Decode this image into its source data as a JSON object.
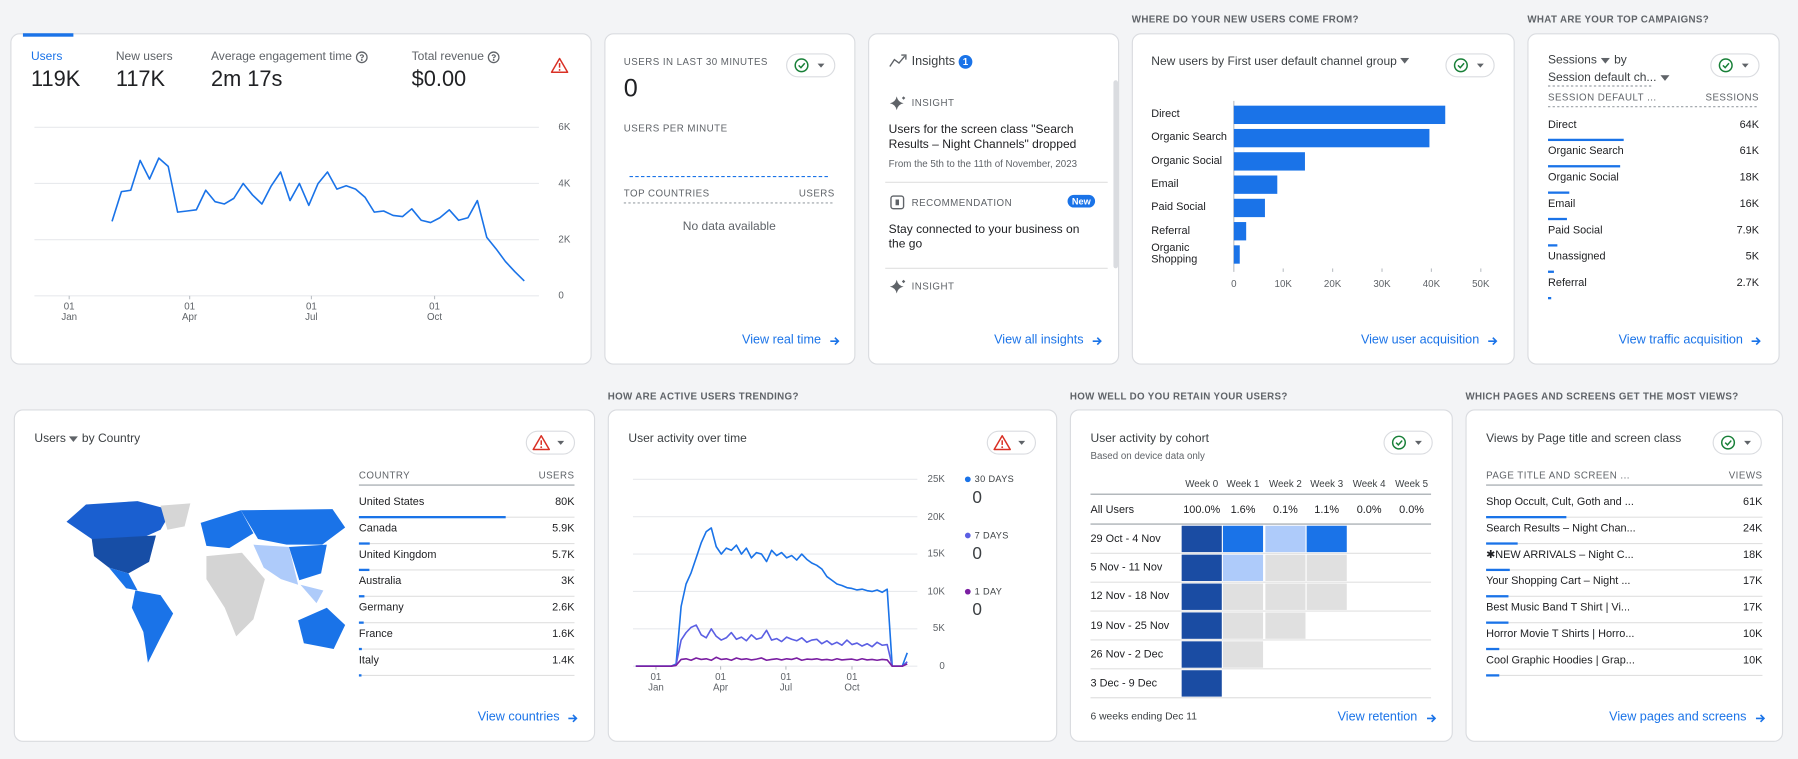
{
  "overview": {
    "metrics": [
      {
        "label": "Users",
        "value": "119K"
      },
      {
        "label": "New users",
        "value": "117K"
      },
      {
        "label": "Average engagement time",
        "value": "2m 17s"
      },
      {
        "label": "Total revenue",
        "value": "$0.00"
      }
    ],
    "chart_data": {
      "type": "line",
      "x": [
        32,
        39,
        46,
        53,
        60,
        67,
        74,
        81,
        88,
        95,
        102,
        109,
        116,
        123,
        130,
        137,
        144,
        151,
        158,
        165,
        172,
        179,
        186,
        193,
        200,
        207,
        214,
        221,
        228,
        235,
        242,
        249,
        256,
        263,
        270,
        277,
        284,
        291,
        298,
        305,
        312,
        319,
        326,
        333,
        340
      ],
      "values": [
        2650,
        3710,
        3760,
        4820,
        4160,
        4900,
        4610,
        2980,
        3020,
        3060,
        3760,
        3350,
        3270,
        3470,
        4000,
        3590,
        3270,
        3920,
        4410,
        3390,
        4000,
        3220,
        4000,
        4410,
        3800,
        3920,
        3800,
        3510,
        2980,
        3020,
        2860,
        2820,
        3100,
        2690,
        2610,
        2780,
        3060,
        2690,
        2780,
        3390,
        2080,
        1670,
        1220,
        860,
        530
      ],
      "color": "#1a73e8",
      "xlim": [
        -26,
        351
      ],
      "xticks": [
        {
          "value": 0,
          "label": "01 Jan"
        },
        {
          "value": 90,
          "label": "01 Apr"
        },
        {
          "value": 181,
          "label": "01 Jul"
        },
        {
          "value": 273,
          "label": "01 Oct"
        }
      ],
      "ylim": [
        0,
        6000
      ],
      "yticks": [
        {
          "value": 6000,
          "label": "6K"
        },
        {
          "value": 4000,
          "label": "4K"
        },
        {
          "value": 2000,
          "label": "2K"
        },
        0
      ],
      "grid": true
    }
  },
  "realtime": {
    "title": "USERS IN LAST 30 MINUTES",
    "value": 0,
    "subtitle": "USERS PER MINUTE",
    "columns": [
      "TOP COUNTRIES",
      "USERS"
    ],
    "empty": "No data available",
    "link": "View real time"
  },
  "insights": {
    "title": "Insights",
    "count": 1,
    "items": [
      {
        "kind": "INSIGHT",
        "text": "Users for the screen class \"Search Results – Night Channels\" dropped",
        "date": "From the 5th to the 11th of November, 2023"
      },
      {
        "kind": "RECOMMENDATION",
        "badge": "New",
        "text": "Stay connected to your business on the go"
      },
      {
        "kind": "INSIGHT"
      }
    ],
    "link": "View all insights"
  },
  "acquisition": {
    "section": "WHERE DO YOUR NEW USERS COME FROM?",
    "chart_data": {
      "type": "hbar",
      "title": "New users by First user default channel group",
      "categories": [
        "Direct",
        "Organic Search",
        "Organic Social",
        "Email",
        "Paid Social",
        "Referral",
        "Organic Shopping"
      ],
      "values": [
        42800,
        39600,
        14400,
        8800,
        6300,
        2500,
        1200
      ],
      "color": "#1a73e8",
      "xlim": [
        0,
        52000
      ],
      "xticks": [
        0,
        {
          "value": 10000,
          "label": "10K"
        },
        {
          "value": 20000,
          "label": "20K"
        },
        {
          "value": 30000,
          "label": "30K"
        },
        {
          "value": 40000,
          "label": "40K"
        },
        {
          "value": 50000,
          "label": "50K"
        }
      ],
      "grid": false
    },
    "link": "View user acquisition"
  },
  "campaigns": {
    "section": "WHAT ARE YOUR TOP CAMPAIGNS?",
    "metric": "Sessions",
    "by": "by",
    "dimension": "Session default ch...",
    "columns": [
      "SESSION DEFAULT ...",
      "SESSIONS"
    ],
    "categories": [
      "Direct",
      "Organic Search",
      "Organic Social",
      "Email",
      "Paid Social",
      "Unassigned",
      "Referral"
    ],
    "values": [
      64000,
      61000,
      18000,
      16000,
      7900,
      5000,
      2700
    ],
    "value_labels": [
      "64K",
      "61K",
      "18K",
      "16K",
      "7.9K",
      "5K",
      "2.7K"
    ],
    "color": "#1a73e8",
    "link": "View traffic acquisition"
  },
  "countries": {
    "metric": "Users",
    "by": "by Country",
    "columns": [
      "COUNTRY",
      "USERS"
    ],
    "categories": [
      "United States",
      "Canada",
      "United Kingdom",
      "Australia",
      "Germany",
      "France",
      "Italy"
    ],
    "values": [
      80000,
      5900,
      5700,
      3000,
      2600,
      1600,
      1400
    ],
    "value_labels": [
      "80K",
      "5.9K",
      "5.7K",
      "3K",
      "2.6K",
      "1.6K",
      "1.4K"
    ],
    "color": "#1a73e8",
    "link": "View countries"
  },
  "activity": {
    "section": "HOW ARE ACTIVE USERS TRENDING?",
    "chart_data": {
      "type": "line",
      "title": "User activity over time",
      "x": [
        -28,
        -21,
        -14,
        -7,
        0,
        7,
        14,
        21,
        28,
        35,
        42,
        49,
        56,
        63,
        70,
        77,
        84,
        91,
        98,
        105,
        112,
        119,
        126,
        133,
        140,
        147,
        154,
        161,
        168,
        175,
        182,
        189,
        196,
        203,
        210,
        217,
        224,
        231,
        238,
        245,
        252,
        259,
        266,
        273,
        280,
        287,
        294,
        301,
        308,
        315,
        322,
        329,
        336,
        343,
        350
      ],
      "series": [
        {
          "name": "30 DAYS",
          "color": "#1a73e8",
          "latest": 0,
          "values": [
            0,
            0,
            0,
            0,
            0,
            0,
            0,
            0,
            300,
            8000,
            11000,
            12500,
            14500,
            16500,
            18000,
            18500,
            16000,
            15000,
            15800,
            15500,
            16200,
            15000,
            15800,
            14500,
            15200,
            15000,
            14000,
            15500,
            14800,
            15200,
            14500,
            14800,
            14200,
            15000,
            14300,
            13800,
            13500,
            13000,
            12000,
            11500,
            11000,
            10800,
            10500,
            10400,
            10200,
            10300,
            10100,
            10000,
            10200,
            9900,
            10300,
            0,
            0,
            0,
            1800
          ]
        },
        {
          "name": "7 DAYS",
          "color": "#5b5fe3",
          "latest": 0,
          "values": [
            0,
            0,
            0,
            0,
            0,
            0,
            0,
            0,
            200,
            3500,
            4500,
            5200,
            5500,
            4200,
            3800,
            5000,
            4000,
            3500,
            3800,
            4500,
            3600,
            3900,
            3400,
            4200,
            3600,
            3800,
            4800,
            3500,
            3700,
            3300,
            3900,
            3600,
            3400,
            3800,
            3200,
            3500,
            3600,
            3000,
            3400,
            2900,
            3200,
            2800,
            3500,
            2900,
            3100,
            2700,
            3000,
            2600,
            3200,
            2800,
            2900,
            0,
            0,
            0,
            600
          ]
        },
        {
          "name": "1 DAY",
          "color": "#7b1fa2",
          "latest": 0,
          "values": [
            0,
            0,
            0,
            0,
            0,
            0,
            0,
            0,
            100,
            900,
            1000,
            800,
            1100,
            900,
            1000,
            800,
            1200,
            900,
            1000,
            800,
            1100,
            900,
            1000,
            850,
            950,
            1100,
            800,
            900,
            1000,
            850,
            1000,
            900,
            1100,
            800,
            950,
            900,
            1000,
            850,
            900,
            800,
            1000,
            850,
            900,
            950,
            800,
            1000,
            850,
            900,
            800,
            900,
            850,
            0,
            0,
            0,
            300
          ]
        }
      ],
      "xlim": [
        -32,
        364
      ],
      "xticks": [
        {
          "value": 0,
          "label": "01 Jan"
        },
        {
          "value": 90,
          "label": "01 Apr"
        },
        {
          "value": 181,
          "label": "01 Jul"
        },
        {
          "value": 273,
          "label": "01 Oct"
        }
      ],
      "ylim": [
        0,
        25000
      ],
      "yticks": [
        {
          "value": 25000,
          "label": "25K"
        },
        {
          "value": 20000,
          "label": "20K"
        },
        {
          "value": 15000,
          "label": "15K"
        },
        {
          "value": 10000,
          "label": "10K"
        },
        {
          "value": 5000,
          "label": "5K"
        },
        0
      ],
      "grid": true
    }
  },
  "retention": {
    "section": "HOW WELL DO YOU RETAIN YOUR USERS?",
    "title": "User activity by cohort",
    "subtitle": "Based on device data only",
    "columns": [
      "Week 0",
      "Week 1",
      "Week 2",
      "Week 3",
      "Week 4",
      "Week 5"
    ],
    "all_users": {
      "label": "All Users",
      "values": [
        100.0,
        1.6,
        0.1,
        1.1,
        0.0,
        0.0
      ],
      "value_labels": [
        "100.0%",
        "1.6%",
        "0.1%",
        "1.1%",
        "0.0%",
        "0.0%"
      ]
    },
    "cohorts": [
      "29 Oct - 4 Nov",
      "5 Nov - 11 Nov",
      "12 Nov - 18 Nov",
      "19 Nov - 25 Nov",
      "26 Nov - 2 Dec",
      "3 Dec - 9 Dec"
    ],
    "cell_colors": [
      [
        "#1a4ca3",
        "#1a73e8",
        "#aecbfa",
        "#1a73e8"
      ],
      [
        "#1a4ca3",
        "#aecbfa",
        "#e0e0e0",
        "#e0e0e0"
      ],
      [
        "#1a4ca3",
        "#e0e0e0",
        "#e0e0e0",
        "#e0e0e0"
      ],
      [
        "#1a4ca3",
        "#e0e0e0",
        "#e0e0e0"
      ],
      [
        "#1a4ca3",
        "#e0e0e0"
      ],
      [
        "#1a4ca3"
      ]
    ],
    "footer": "6 weeks ending Dec 11",
    "link": "View retention"
  },
  "pages": {
    "section": "WHICH PAGES AND SCREENS GET THE MOST VIEWS?",
    "title": "Views by Page title and screen class",
    "columns": [
      "PAGE TITLE AND SCREEN ...",
      "VIEWS"
    ],
    "categories": [
      "Shop Occult, Cult, Goth and ...",
      "Search Results – Night Chan...",
      "✱NEW ARRIVALS – Night C...",
      "Your Shopping Cart – Night ...",
      "Best Music Band T Shirt | Vi...",
      "Horror Movie T Shirts | Horro...",
      "Cool Graphic Hoodies | Grap..."
    ],
    "values": [
      61000,
      24000,
      18000,
      17000,
      17000,
      10000,
      10000
    ],
    "value_labels": [
      "61K",
      "24K",
      "18K",
      "17K",
      "17K",
      "10K",
      "10K"
    ],
    "color": "#1a73e8",
    "link": "View pages and screens"
  }
}
